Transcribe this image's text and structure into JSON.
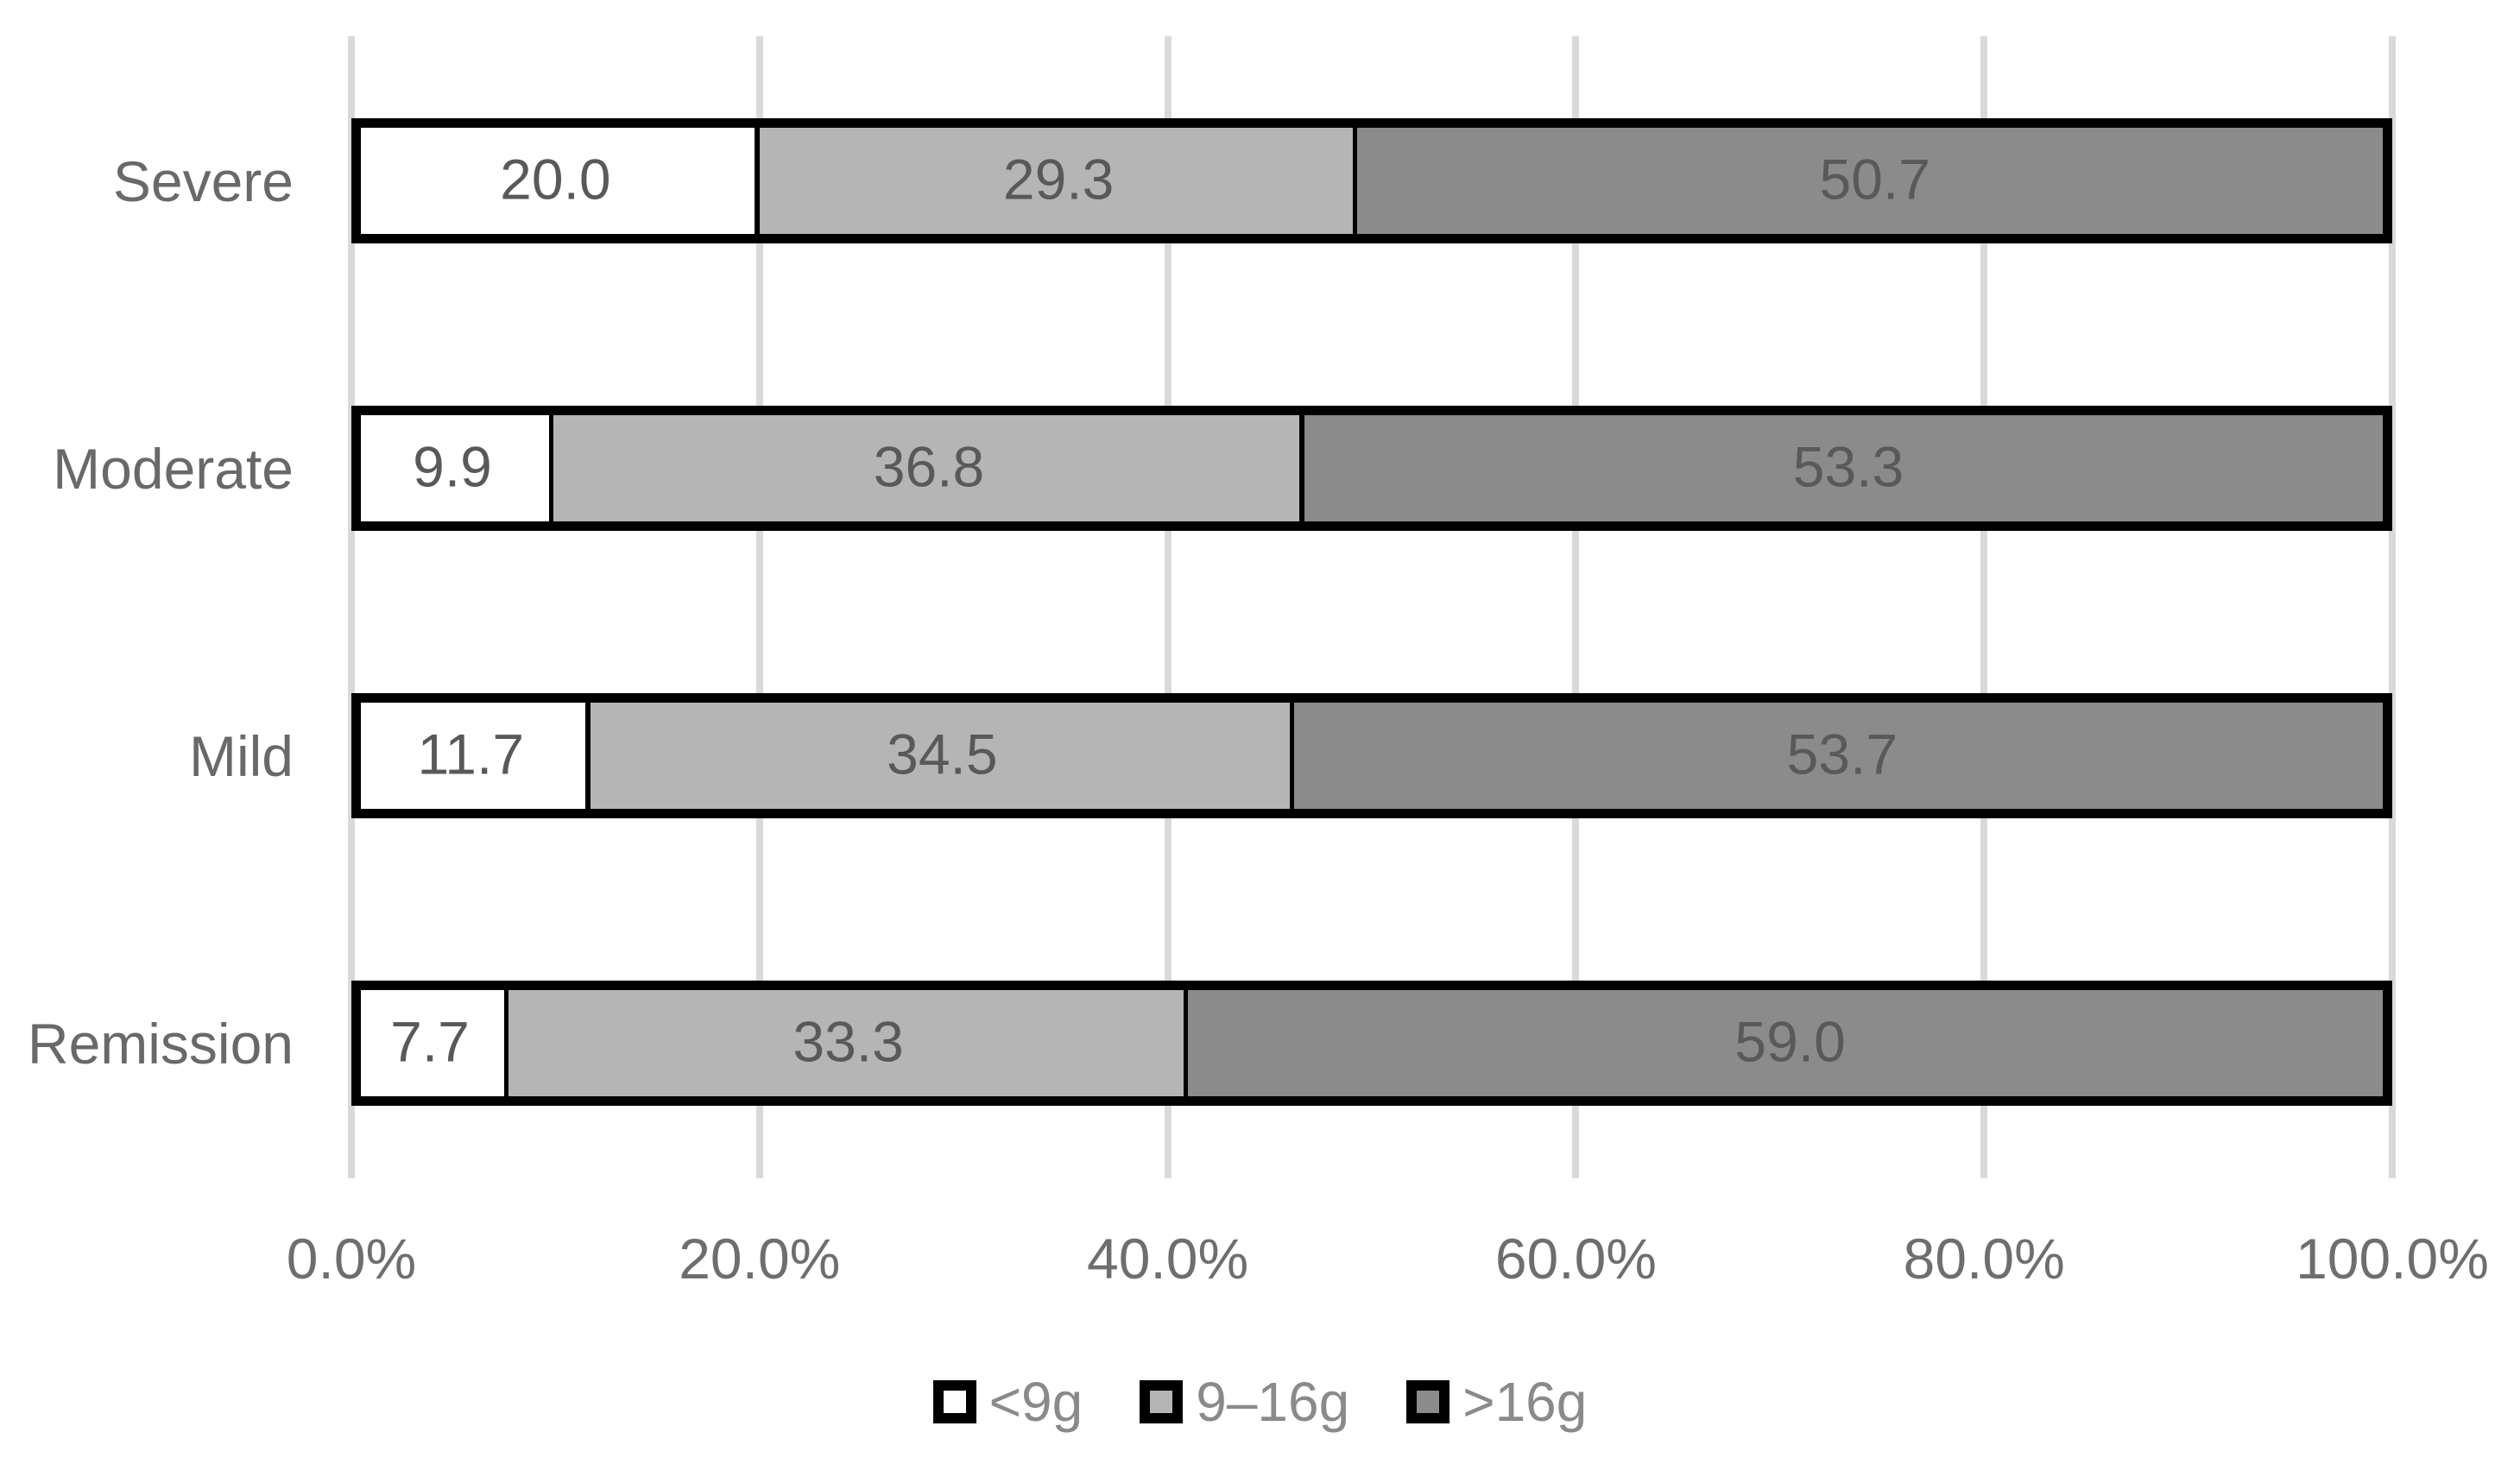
{
  "chart_data": {
    "type": "bar",
    "orientation": "horizontal_stacked",
    "title": "",
    "categories": [
      "Severe",
      "Moderate",
      "Mild",
      "Remission"
    ],
    "series": [
      {
        "name": "<9g",
        "fill": "#ffffff",
        "values": [
          20.0,
          9.9,
          11.7,
          7.7
        ]
      },
      {
        "name": "9–16g",
        "fill": "#b5b5b5",
        "values": [
          29.3,
          36.8,
          34.5,
          33.3
        ]
      },
      {
        "name": ">16g",
        "fill": "#8b8b8b",
        "values": [
          50.7,
          53.3,
          53.7,
          59.0
        ]
      }
    ],
    "value_label_decimals": 1,
    "x_axis": {
      "min": 0,
      "max": 100,
      "tick_step": 20,
      "ticks": [
        "0.0%",
        "20.0%",
        "40.0%",
        "60.0%",
        "80.0%",
        "100.0%"
      ],
      "gridlines": true
    },
    "legend": {
      "position": "bottom",
      "entries": [
        "<9g",
        "9–16g",
        ">16g"
      ]
    },
    "colors": {
      "gridline": "#d9d9d9",
      "bar_border": "#000000",
      "value_label": "#595959",
      "category_label": "#696969",
      "tick_label": "#6e6e6e",
      "legend_label": "#8a8a8a"
    }
  }
}
